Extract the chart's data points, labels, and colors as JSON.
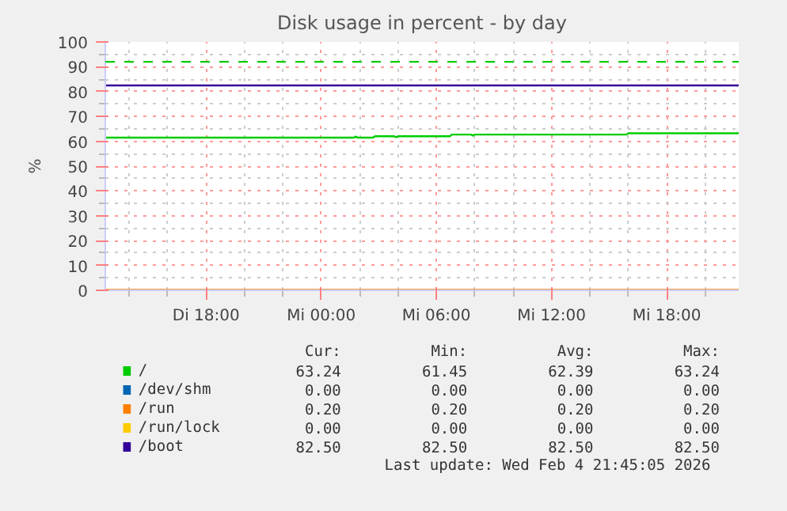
{
  "chart_data": {
    "type": "line",
    "title": "Disk usage in percent - by day",
    "ylabel": "%",
    "xlim": [
      "2026-02-03T12:45",
      "2026-02-04T21:45"
    ],
    "xticks": [
      {
        "value": "2026-02-03T18:00",
        "label": "Di 18:00"
      },
      {
        "value": "2026-02-04T00:00",
        "label": "Mi 00:00"
      },
      {
        "value": "2026-02-04T06:00",
        "label": "Mi 06:00"
      },
      {
        "value": "2026-02-04T12:00",
        "label": "Mi 12:00"
      },
      {
        "value": "2026-02-04T18:00",
        "label": "Mi 18:00"
      }
    ],
    "ylim": [
      0,
      100
    ],
    "yticks": [
      0,
      10,
      20,
      30,
      40,
      50,
      60,
      70,
      80,
      90,
      100
    ],
    "grid": true,
    "legend": "bottom",
    "series": [
      {
        "name": "/",
        "color": "#00cc00",
        "x": [
          "2026-02-03T12:45",
          "2026-02-04T01:42",
          "2026-02-04T01:48",
          "2026-02-04T01:54",
          "2026-02-04T02:42",
          "2026-02-04T02:48",
          "2026-02-04T03:48",
          "2026-02-04T03:54",
          "2026-02-04T04:00",
          "2026-02-04T06:42",
          "2026-02-04T06:48",
          "2026-02-04T07:48",
          "2026-02-04T07:54",
          "2026-02-04T08:00",
          "2026-02-04T15:54",
          "2026-02-04T16:00",
          "2026-02-04T21:45"
        ],
        "values": [
          61.45,
          61.45,
          61.9,
          61.45,
          61.45,
          62.0,
          62.0,
          61.7,
          62.0,
          62.0,
          62.7,
          62.7,
          62.3,
          62.7,
          62.7,
          63.24,
          63.24
        ]
      },
      {
        "name": "/dev/shm",
        "color": "#0066b3"
      },
      {
        "name": "/run",
        "color": "#ff8000",
        "x": [
          "2026-02-03T12:45",
          "2026-02-04T21:45"
        ],
        "values": [
          0.2,
          0.2
        ]
      },
      {
        "name": "/run/lock",
        "color": "#ffcc00"
      },
      {
        "name": "/boot",
        "color": "#330099",
        "x": [
          "2026-02-03T12:45",
          "2026-02-04T21:45"
        ],
        "values": [
          82.5,
          82.5
        ]
      }
    ],
    "ref_lines": [
      {
        "axis": "y",
        "value": 92,
        "label": null,
        "color": "#00cc00",
        "line_style": "dashed"
      }
    ],
    "annotations": [
      "Cur:",
      "Min:",
      "Avg:",
      "Max:",
      "63.24",
      "61.45",
      "62.39",
      "63.24",
      "0.00",
      "0.00",
      "0.00",
      "0.00",
      "0.20",
      "0.20",
      "0.20",
      "0.20",
      "0.00",
      "0.00",
      "0.00",
      "0.00",
      "82.50",
      "82.50",
      "82.50",
      "82.50",
      "Last update: Wed Feb  4 21:45:05 2026"
    ]
  }
}
